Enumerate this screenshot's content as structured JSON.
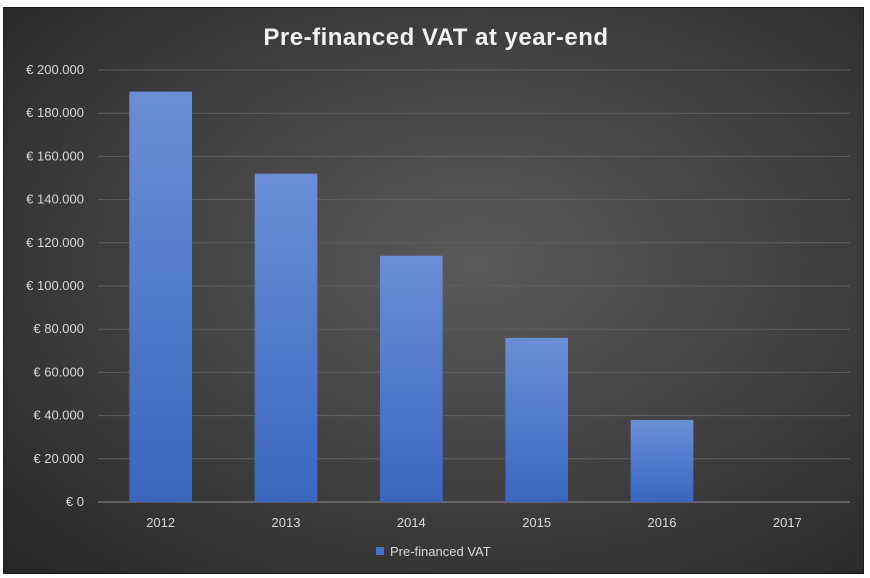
{
  "chart_data": {
    "type": "bar",
    "title": "Pre-financed VAT at year-end",
    "categories": [
      "2012",
      "2013",
      "2014",
      "2015",
      "2016",
      "2017"
    ],
    "series": [
      {
        "name": "Pre-financed VAT",
        "values": [
          190000,
          152000,
          114000,
          76000,
          38000,
          0
        ]
      }
    ],
    "ylim": [
      0,
      200000
    ],
    "yticks": [
      0,
      20000,
      40000,
      60000,
      80000,
      100000,
      120000,
      140000,
      160000,
      180000,
      200000
    ],
    "ytick_labels": [
      "€ 0",
      "€ 20.000",
      "€ 40.000",
      "€ 60.000",
      "€ 80.000",
      "€ 100.000",
      "€ 120.000",
      "€ 140.000",
      "€ 160.000",
      "€ 180.000",
      "€ 200.000"
    ],
    "grid": true,
    "legend": "bottom",
    "bar_color": "#4472c4"
  }
}
